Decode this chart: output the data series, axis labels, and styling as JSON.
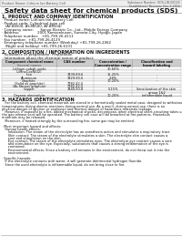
{
  "header_left": "Product Name: Lithium Ion Battery Cell",
  "header_right_1": "Substance Number: SDS-LIB-00018",
  "header_right_2": "Established / Revision: Dec.7,2016",
  "title": "Safety data sheet for chemical products (SDS)",
  "s1_title": "1. PRODUCT AND COMPANY IDENTIFICATION",
  "s1_lines": [
    "· Product name: Lithium Ion Battery Cell",
    "· Product code: Cylindrical-type cell",
    "   (AY-88500, AY-88500, AY-88504)",
    "· Company name:      Sanyo Electric Co., Ltd., Mobile Energy Company",
    "· Address:                2001 Kamionkusen, Sumoto-City, Hyogo, Japan",
    "· Telephone number:   +81-799-26-4111",
    "· Fax number:  +81-799-26-4129",
    "· Emergency telephone number (Weekday) +81-799-26-2062",
    "   (Night and holiday) +81-799-26-6131"
  ],
  "s2_title": "2. COMPOSITION / INFORMATION ON INGREDIENTS",
  "s2_line1": "· Substance or preparation: Preparation",
  "s2_line2": "· Information about the chemical nature of product:",
  "tbl_h0": "Component chemical name",
  "tbl_h0b": "Several names",
  "tbl_h1": "CAS number",
  "tbl_h2a": "Concentration /",
  "tbl_h2b": "Concentration range",
  "tbl_h3a": "Classification and",
  "tbl_h3b": "hazard labeling",
  "tbl_rows": [
    [
      "Lithium cobalt oxide",
      "-",
      "30-60%",
      "-"
    ],
    [
      "(LiMnxCoxNiO2)",
      "",
      "",
      ""
    ],
    [
      "Iron",
      "7439-89-6",
      "15-25%",
      "-"
    ],
    [
      "Aluminum",
      "7429-90-5",
      "2-8%",
      "-"
    ],
    [
      "Graphite",
      "",
      "10-20%",
      "-"
    ],
    [
      "(Solid as graphite)",
      "7782-42-5",
      "",
      ""
    ],
    [
      "(As fibrous graphite)",
      "7782-42-5",
      "",
      ""
    ],
    [
      "Copper",
      "7440-50-8",
      "5-15%",
      "Sensitization of the skin"
    ],
    [
      "",
      "",
      "",
      "group 1&2"
    ],
    [
      "Organic electrolyte",
      "-",
      "10-20%",
      "Inflammable liquid"
    ]
  ],
  "s3_title": "3. HAZARDS IDENTIFICATION",
  "s3_lines": [
    "   For the battery cell, chemical materials are stored in a hermetically sealed metal case, designed to withstand",
    "temperatures during electro-reactions during normal use. As a result, during normal use, there is no",
    "physical danger of ignition or explosion and thermal danger of hazardous materials leakage.",
    "   However, if exposed to a fire, added mechanical shocks, decompose, when electrical short-circuiting takes use,",
    "the gas release vent will be operated. The battery cell case will be breached at fire-patterns. Hazardous",
    "materials may be released.",
    "   Moreover, if heated strongly by the surrounding fire, some gas may be emitted.",
    "",
    "· Most important hazard and effects:",
    "   Human health effects:",
    "      Inhalation: The steam of the electrolyte has an anesthesia action and stimulates a respiratory tract.",
    "      Skin contact: The steam of the electrolyte stimulates a skin. The electrolyte skin contact causes a",
    "      sore and stimulation on the skin.",
    "      Eye contact: The steam of the electrolyte stimulates eyes. The electrolyte eye contact causes a sore",
    "      and stimulation on the eye. Especially, substances that causes a strong inflammation of the eye is",
    "      contained.",
    "      Environmental effects: Since a battery cell remains in the environment, do not throw out it into the",
    "      environment.",
    "",
    "· Specific hazards:",
    "   If the electrolyte contacts with water, it will generate detrimental hydrogen fluoride.",
    "   Since the used electrolyte is inflammable liquid, do not bring close to fire."
  ],
  "bg": "#ffffff",
  "gray_light": "#eeeeee",
  "gray_med": "#cccccc",
  "border": "#999999",
  "text_dark": "#111111",
  "text_gray": "#555555"
}
